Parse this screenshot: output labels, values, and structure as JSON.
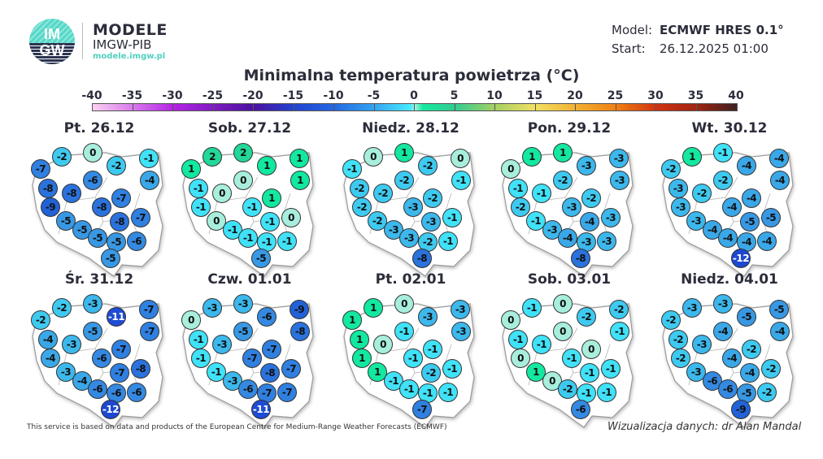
{
  "logo": {
    "text_top": "IM",
    "text_bottom": "GW",
    "brand": "MODELE",
    "org": "IMGW-PIB",
    "url": "modele.imgw.pl"
  },
  "header": {
    "model_label": "Model:",
    "model_value": "ECMWF HRES 0.1°",
    "start_label": "Start:",
    "start_value": "26.12.2025 01:00"
  },
  "title": "Minimalna temperatura powietrza (°C)",
  "colorbar": {
    "ticks": [
      -40,
      -35,
      -30,
      -25,
      -20,
      -15,
      -10,
      -5,
      0,
      5,
      10,
      15,
      20,
      25,
      30,
      35,
      40
    ],
    "stops": [
      [
        -40,
        "#fbd0f2"
      ],
      [
        -30,
        "#b424e4"
      ],
      [
        -20,
        "#4a12a0"
      ],
      [
        -15,
        "#2244d0"
      ],
      [
        -10,
        "#2468e2"
      ],
      [
        -5,
        "#34a4f0"
      ],
      [
        -0.5,
        "#48ecff"
      ],
      [
        0,
        "#a6f0de"
      ],
      [
        1,
        "#14e8a0"
      ],
      [
        5,
        "#32cc90"
      ],
      [
        10,
        "#a6d062"
      ],
      [
        15,
        "#f2e062"
      ],
      [
        20,
        "#f2b032"
      ],
      [
        25,
        "#f08012"
      ],
      [
        30,
        "#d03412"
      ],
      [
        35,
        "#a02412"
      ],
      [
        40,
        "#3e2020"
      ]
    ]
  },
  "maps": [
    {
      "date": "Pt. 26.12",
      "values": [
        -7,
        -2,
        0,
        -2,
        -1,
        -4,
        -6,
        -8,
        -8,
        -7,
        -9,
        -8,
        -5,
        -8,
        -7,
        -5,
        -5,
        -5,
        -6,
        -5
      ]
    },
    {
      "date": "Sob. 27.12",
      "values": [
        1,
        2,
        2,
        1,
        1,
        1,
        0,
        -1,
        0,
        1,
        -1,
        -1,
        0,
        -1,
        0,
        -1,
        -1,
        -1,
        -1,
        -5
      ]
    },
    {
      "date": "Niedz. 28.12",
      "values": [
        -1,
        0,
        1,
        -2,
        0,
        -1,
        -2,
        -2,
        -2,
        -2,
        -2,
        -3,
        -2,
        -3,
        -1,
        -3,
        -3,
        -2,
        -1,
        -8
      ]
    },
    {
      "date": "Pon. 29.12",
      "values": [
        0,
        1,
        1,
        -3,
        -3,
        -3,
        -2,
        -1,
        -1,
        -2,
        -2,
        -3,
        -1,
        -4,
        -3,
        -3,
        -4,
        -3,
        -3,
        -8
      ]
    },
    {
      "date": "Wt. 30.12",
      "values": [
        -2,
        1,
        -1,
        -4,
        -4,
        -4,
        -2,
        -3,
        -2,
        -4,
        -3,
        -4,
        -3,
        -5,
        -5,
        -4,
        -4,
        -4,
        -4,
        -12
      ]
    },
    {
      "date": "Śr. 31.12",
      "values": [
        -2,
        -2,
        -3,
        -11,
        -7,
        -7,
        -5,
        -4,
        -3,
        -7,
        -4,
        -6,
        -3,
        -7,
        -8,
        -4,
        -6,
        -6,
        -6,
        -12
      ]
    },
    {
      "date": "Czw. 01.01",
      "values": [
        0,
        -3,
        -3,
        -6,
        -9,
        -8,
        -5,
        -1,
        -3,
        -7,
        -1,
        -7,
        -1,
        -8,
        -7,
        -3,
        -6,
        -7,
        -7,
        -11
      ]
    },
    {
      "date": "Pt. 02.01",
      "values": [
        1,
        1,
        0,
        -3,
        -3,
        -3,
        -1,
        1,
        0,
        -1,
        1,
        -1,
        1,
        -2,
        -1,
        -1,
        -1,
        -1,
        -1,
        -7
      ]
    },
    {
      "date": "Sob. 03.01",
      "values": [
        0,
        -1,
        0,
        -2,
        -2,
        -1,
        0,
        -1,
        -1,
        0,
        0,
        -1,
        1,
        -1,
        -1,
        0,
        -2,
        -1,
        -1,
        -6
      ]
    },
    {
      "date": "Niedz. 04.01",
      "values": [
        -2,
        -3,
        -3,
        -5,
        -5,
        -4,
        -4,
        -2,
        -3,
        -2,
        -2,
        -4,
        -3,
        -4,
        -2,
        -6,
        -6,
        -5,
        -2,
        -9
      ]
    }
  ],
  "footer": {
    "source": "This service is based on data and products of the European Centre for Medium-Range Weather Forecasts (ECMWF)",
    "credit": "Wizualizacja danych: dr Alan Mandal"
  }
}
